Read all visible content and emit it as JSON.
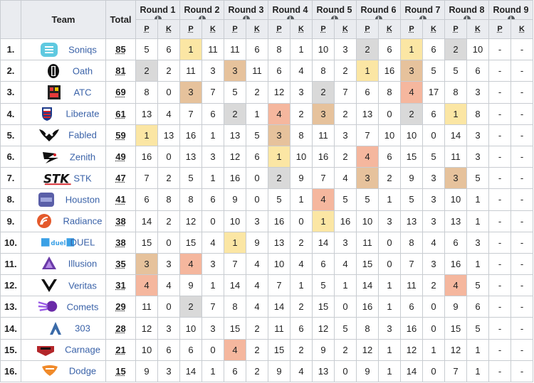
{
  "headers": {
    "team": "Team",
    "total": "Total",
    "rounds": [
      "Round 1",
      "Round 2",
      "Round 3",
      "Round 4",
      "Round 5",
      "Round 6",
      "Round 7",
      "Round 8",
      "Round 9"
    ],
    "p": "P",
    "k": "K",
    "info_icon": "i"
  },
  "colors": {
    "gold": "#fbe6a4",
    "silver": "#d9d9d9",
    "bronze": "#e6c29c",
    "fourth": "#f5b79e",
    "link": "#3a62a8"
  },
  "rows": [
    {
      "rank": "1.",
      "team": "Soniqs",
      "logo": "soniqs-logo",
      "total": "85",
      "rounds": [
        [
          "5",
          "6"
        ],
        [
          "1",
          "11"
        ],
        [
          "11",
          "6"
        ],
        [
          "8",
          "1"
        ],
        [
          "10",
          "3"
        ],
        [
          "2",
          "6"
        ],
        [
          "1",
          "6"
        ],
        [
          "2",
          "10"
        ],
        [
          "-",
          "-"
        ]
      ]
    },
    {
      "rank": "2.",
      "team": "Oath",
      "logo": "oath-logo",
      "total": "81",
      "rounds": [
        [
          "2",
          "2"
        ],
        [
          "11",
          "3"
        ],
        [
          "3",
          "11"
        ],
        [
          "6",
          "4"
        ],
        [
          "8",
          "2"
        ],
        [
          "1",
          "16"
        ],
        [
          "3",
          "5"
        ],
        [
          "5",
          "6"
        ],
        [
          "-",
          "-"
        ]
      ]
    },
    {
      "rank": "3.",
      "team": "ATC",
      "logo": "atc-logo",
      "total": "69",
      "rounds": [
        [
          "8",
          "0"
        ],
        [
          "3",
          "7"
        ],
        [
          "5",
          "2"
        ],
        [
          "12",
          "3"
        ],
        [
          "2",
          "7"
        ],
        [
          "6",
          "8"
        ],
        [
          "4",
          "17"
        ],
        [
          "8",
          "3"
        ],
        [
          "-",
          "-"
        ]
      ]
    },
    {
      "rank": "4.",
      "team": "Liberate",
      "logo": "liberate-logo",
      "total": "61",
      "rounds": [
        [
          "13",
          "4"
        ],
        [
          "7",
          "6"
        ],
        [
          "2",
          "1"
        ],
        [
          "4",
          "2"
        ],
        [
          "3",
          "2"
        ],
        [
          "13",
          "0"
        ],
        [
          "2",
          "6"
        ],
        [
          "1",
          "8"
        ],
        [
          "-",
          "-"
        ]
      ]
    },
    {
      "rank": "5.",
      "team": "Fabled",
      "logo": "fabled-logo",
      "total": "59",
      "rounds": [
        [
          "1",
          "13"
        ],
        [
          "16",
          "1"
        ],
        [
          "13",
          "5"
        ],
        [
          "3",
          "8"
        ],
        [
          "11",
          "3"
        ],
        [
          "7",
          "10"
        ],
        [
          "10",
          "0"
        ],
        [
          "14",
          "3"
        ],
        [
          "-",
          "-"
        ]
      ]
    },
    {
      "rank": "6.",
      "team": "Zenith",
      "logo": "zenith-logo",
      "total": "49",
      "rounds": [
        [
          "16",
          "0"
        ],
        [
          "13",
          "3"
        ],
        [
          "12",
          "6"
        ],
        [
          "1",
          "10"
        ],
        [
          "16",
          "2"
        ],
        [
          "4",
          "6"
        ],
        [
          "15",
          "5"
        ],
        [
          "11",
          "3"
        ],
        [
          "-",
          "-"
        ]
      ]
    },
    {
      "rank": "7.",
      "team": "STK",
      "logo": "stk-logo",
      "total": "47",
      "rounds": [
        [
          "7",
          "2"
        ],
        [
          "5",
          "1"
        ],
        [
          "16",
          "0"
        ],
        [
          "2",
          "9"
        ],
        [
          "7",
          "4"
        ],
        [
          "3",
          "2"
        ],
        [
          "9",
          "3"
        ],
        [
          "3",
          "5"
        ],
        [
          "-",
          "-"
        ]
      ]
    },
    {
      "rank": "8.",
      "team": "Houston",
      "logo": "houston-logo",
      "total": "41",
      "rounds": [
        [
          "6",
          "8"
        ],
        [
          "8",
          "6"
        ],
        [
          "9",
          "0"
        ],
        [
          "5",
          "1"
        ],
        [
          "4",
          "5"
        ],
        [
          "5",
          "1"
        ],
        [
          "5",
          "3"
        ],
        [
          "10",
          "1"
        ],
        [
          "-",
          "-"
        ]
      ]
    },
    {
      "rank": "9.",
      "team": "Radiance",
      "logo": "radiance-logo",
      "total": "38",
      "rounds": [
        [
          "14",
          "2"
        ],
        [
          "12",
          "0"
        ],
        [
          "10",
          "3"
        ],
        [
          "16",
          "0"
        ],
        [
          "1",
          "16"
        ],
        [
          "10",
          "3"
        ],
        [
          "13",
          "3"
        ],
        [
          "13",
          "1"
        ],
        [
          "-",
          "-"
        ]
      ]
    },
    {
      "rank": "10.",
      "team": "DUEL",
      "logo": "duel-logo",
      "total": "38",
      "rounds": [
        [
          "15",
          "0"
        ],
        [
          "15",
          "4"
        ],
        [
          "1",
          "9"
        ],
        [
          "13",
          "2"
        ],
        [
          "14",
          "3"
        ],
        [
          "11",
          "0"
        ],
        [
          "8",
          "4"
        ],
        [
          "6",
          "3"
        ],
        [
          "-",
          "-"
        ]
      ]
    },
    {
      "rank": "11.",
      "team": "Illusion",
      "logo": "illusion-logo",
      "total": "35",
      "rounds": [
        [
          "3",
          "3"
        ],
        [
          "4",
          "3"
        ],
        [
          "7",
          "4"
        ],
        [
          "10",
          "4"
        ],
        [
          "6",
          "4"
        ],
        [
          "15",
          "0"
        ],
        [
          "7",
          "3"
        ],
        [
          "16",
          "1"
        ],
        [
          "-",
          "-"
        ]
      ]
    },
    {
      "rank": "12.",
      "team": "Veritas",
      "logo": "veritas-logo",
      "total": "31",
      "rounds": [
        [
          "4",
          "4"
        ],
        [
          "9",
          "1"
        ],
        [
          "14",
          "4"
        ],
        [
          "7",
          "1"
        ],
        [
          "5",
          "1"
        ],
        [
          "14",
          "1"
        ],
        [
          "11",
          "2"
        ],
        [
          "4",
          "5"
        ],
        [
          "-",
          "-"
        ]
      ]
    },
    {
      "rank": "13.",
      "team": "Comets",
      "logo": "comets-logo",
      "total": "29",
      "rounds": [
        [
          "11",
          "0"
        ],
        [
          "2",
          "7"
        ],
        [
          "8",
          "4"
        ],
        [
          "14",
          "2"
        ],
        [
          "15",
          "0"
        ],
        [
          "16",
          "1"
        ],
        [
          "6",
          "0"
        ],
        [
          "9",
          "6"
        ],
        [
          "-",
          "-"
        ]
      ]
    },
    {
      "rank": "14.",
      "team": "303",
      "logo": "303-logo",
      "total": "28",
      "rounds": [
        [
          "12",
          "3"
        ],
        [
          "10",
          "3"
        ],
        [
          "15",
          "2"
        ],
        [
          "11",
          "6"
        ],
        [
          "12",
          "5"
        ],
        [
          "8",
          "3"
        ],
        [
          "16",
          "0"
        ],
        [
          "15",
          "5"
        ],
        [
          "-",
          "-"
        ]
      ]
    },
    {
      "rank": "15.",
      "team": "Carnage",
      "logo": "carnage-logo",
      "total": "21",
      "rounds": [
        [
          "10",
          "6"
        ],
        [
          "6",
          "0"
        ],
        [
          "4",
          "2"
        ],
        [
          "15",
          "2"
        ],
        [
          "9",
          "2"
        ],
        [
          "12",
          "1"
        ],
        [
          "12",
          "1"
        ],
        [
          "12",
          "1"
        ],
        [
          "-",
          "-"
        ]
      ]
    },
    {
      "rank": "16.",
      "team": "Dodge",
      "logo": "dodge-logo",
      "total": "15",
      "rounds": [
        [
          "9",
          "3"
        ],
        [
          "14",
          "1"
        ],
        [
          "6",
          "2"
        ],
        [
          "9",
          "4"
        ],
        [
          "13",
          "0"
        ],
        [
          "9",
          "1"
        ],
        [
          "14",
          "0"
        ],
        [
          "7",
          "1"
        ],
        [
          "-",
          "-"
        ]
      ]
    }
  ]
}
